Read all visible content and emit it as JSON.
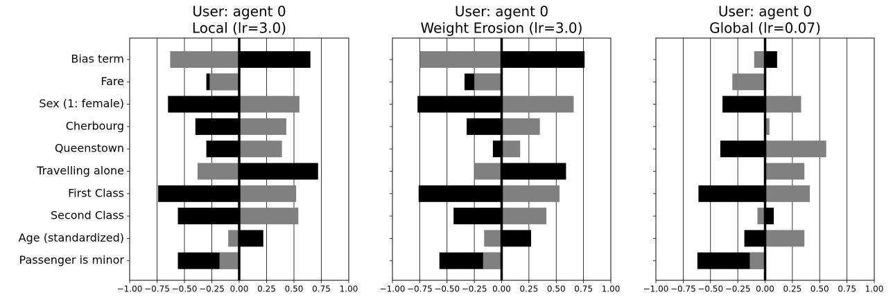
{
  "chart_data": [
    {
      "type": "barh",
      "title": [
        "User: agent 0",
        "Local (lr=3.0)"
      ],
      "categories": [
        "Bias term",
        "Fare",
        "Sex (1: female)",
        "Cherbourg",
        "Queenstown",
        "Travelling alone",
        "First Class",
        "Second Class",
        "Age (standardized)",
        "Passenger is minor"
      ],
      "series": [
        {
          "color": "#000000",
          "values": [
            0.65,
            -0.3,
            -0.65,
            -0.4,
            -0.3,
            0.72,
            -0.74,
            -0.56,
            0.22,
            -0.56
          ]
        },
        {
          "color": "#808080",
          "values": [
            -0.63,
            -0.27,
            0.55,
            0.43,
            0.39,
            -0.38,
            0.52,
            0.54,
            -0.1,
            -0.18
          ]
        }
      ],
      "xlim": [
        -1,
        1
      ],
      "xticks": [
        {
          "value": -1,
          "label": "−1.00"
        },
        {
          "value": -0.75,
          "label": "−0.75"
        },
        {
          "value": -0.5,
          "label": "−0.50"
        },
        {
          "value": -0.25,
          "label": "−0.25"
        },
        {
          "value": 0,
          "label": "0.00"
        },
        {
          "value": 0.25,
          "label": "0.25"
        },
        {
          "value": 0.5,
          "label": "0.50"
        },
        {
          "value": 0.75,
          "label": "0.75"
        },
        {
          "value": 1,
          "label": "1.00"
        }
      ],
      "grid": true
    },
    {
      "type": "barh",
      "title": [
        "User: agent 0",
        "Weight Erosion (lr=3.0)"
      ],
      "series": [
        {
          "color": "#000000",
          "values": [
            0.76,
            -0.34,
            -0.77,
            -0.32,
            -0.08,
            0.59,
            -0.76,
            -0.44,
            0.27,
            -0.57
          ]
        },
        {
          "color": "#808080",
          "values": [
            -0.75,
            -0.25,
            0.66,
            0.35,
            0.17,
            -0.25,
            0.53,
            0.41,
            -0.16,
            -0.17
          ]
        }
      ],
      "xlim": [
        -1,
        1
      ],
      "xticks": [
        {
          "value": -1,
          "label": "−1.00"
        },
        {
          "value": -0.75,
          "label": "−0.75"
        },
        {
          "value": -0.5,
          "label": "−0.50"
        },
        {
          "value": -0.25,
          "label": "−0.25"
        },
        {
          "value": 0,
          "label": "0.00"
        },
        {
          "value": 0.25,
          "label": "0.25"
        },
        {
          "value": 0.5,
          "label": "0.50"
        },
        {
          "value": 0.75,
          "label": "0.75"
        },
        {
          "value": 1,
          "label": "1.00"
        }
      ],
      "grid": true
    },
    {
      "type": "barh",
      "title": [
        "User: agent 0",
        "Global (lr=0.07)"
      ],
      "series": [
        {
          "color": "#000000",
          "values": [
            0.11,
            0,
            -0.39,
            0,
            -0.41,
            0,
            -0.61,
            0.08,
            -0.19,
            -0.62
          ]
        },
        {
          "color": "#808080",
          "values": [
            -0.1,
            -0.3,
            0.33,
            0.04,
            0.56,
            0.36,
            0.41,
            -0.07,
            0.36,
            -0.14
          ]
        }
      ],
      "xlim": [
        -1,
        1
      ],
      "xticks": [
        {
          "value": -1,
          "label": "−1.00"
        },
        {
          "value": -0.75,
          "label": "−0.75"
        },
        {
          "value": -0.5,
          "label": "−0.50"
        },
        {
          "value": -0.25,
          "label": "−0.25"
        },
        {
          "value": 0,
          "label": "0.00"
        },
        {
          "value": 0.25,
          "label": "0.25"
        },
        {
          "value": 0.5,
          "label": "0.50"
        },
        {
          "value": 0.75,
          "label": "0.75"
        },
        {
          "value": 1,
          "label": "1.00"
        }
      ],
      "grid": true
    }
  ]
}
